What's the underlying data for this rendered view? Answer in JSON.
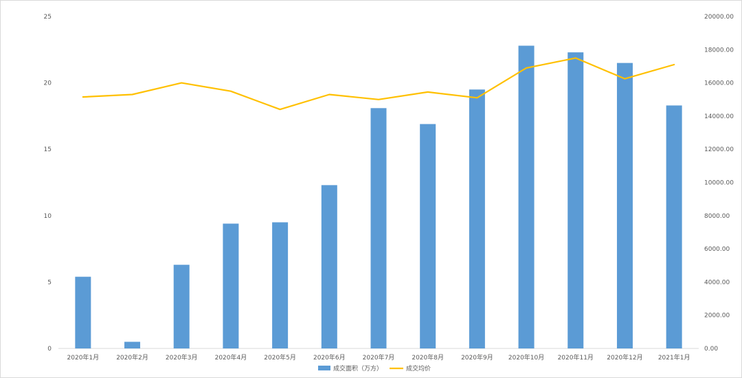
{
  "chart_data": {
    "type": "bar+line",
    "categories": [
      "2020年1月",
      "2020年2月",
      "2020年3月",
      "2020年4月",
      "2020年5月",
      "2020年6月",
      "2020年7月",
      "2020年8月",
      "2020年9月",
      "2020年10月",
      "2020年11月",
      "2020年12月",
      "2021年1月"
    ],
    "series": [
      {
        "name": "成交面积（万方）",
        "type": "bar",
        "axis": "left",
        "color": "#5b9bd5",
        "values": [
          5.4,
          0.5,
          6.3,
          9.4,
          9.5,
          12.3,
          18.1,
          16.9,
          19.5,
          22.8,
          22.3,
          21.5,
          18.3
        ]
      },
      {
        "name": "成交均价",
        "type": "line",
        "axis": "right",
        "color": "#ffc000",
        "values": [
          15150,
          15300,
          16000,
          15500,
          14400,
          15300,
          15000,
          15450,
          15100,
          16900,
          17500,
          16250,
          17100
        ]
      }
    ],
    "y_left": {
      "ticks": [
        "0",
        "5",
        "10",
        "15",
        "20",
        "25"
      ],
      "ylim": [
        0,
        25
      ]
    },
    "y_right": {
      "ticks": [
        "0.00",
        "2000.00",
        "4000.00",
        "6000.00",
        "8000.00",
        "10000.00",
        "12000.00",
        "14000.00",
        "16000.00",
        "18000.00",
        "20000.00"
      ],
      "ylim": [
        0,
        20000
      ]
    },
    "grid": false,
    "legend_position": "bottom-center"
  }
}
